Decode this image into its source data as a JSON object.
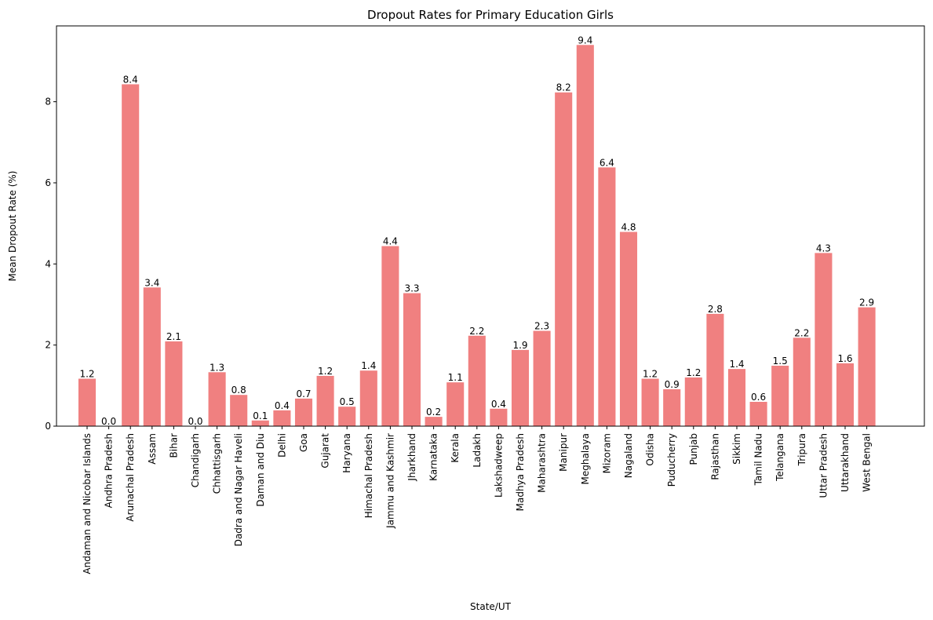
{
  "chart_data": {
    "type": "bar",
    "title": "Dropout Rates for Primary Education Girls",
    "xlabel": "State/UT",
    "ylabel": "Mean Dropout Rate (%)",
    "ylim": [
      0,
      9.87
    ],
    "yticks": [
      0,
      2,
      4,
      6,
      8
    ],
    "bar_color": "#f08080",
    "grid": false,
    "categories": [
      "Andaman and Nicobar Islands",
      "Andhra Pradesh",
      "Arunachal Pradesh",
      "Assam",
      "Bihar",
      "Chandigarh",
      "Chhattisgarh",
      "Dadra and Nagar Haveli",
      "Daman and Diu",
      "Delhi",
      "Goa",
      "Gujarat",
      "Haryana",
      "Himachal Pradesh",
      "Jammu and Kashmir",
      "Jharkhand",
      "Karnataka",
      "Kerala",
      "Ladakh",
      "Lakshadweep",
      "Madhya Pradesh",
      "Maharashtra",
      "Manipur",
      "Meghalaya",
      "Mizoram",
      "Nagaland",
      "Odisha",
      "Puducherry",
      "Punjab",
      "Rajasthan",
      "Sikkim",
      "Tamil Nadu",
      "Telangana",
      "Tripura",
      "Uttar Pradesh",
      "Uttarakhand",
      "West Bengal"
    ],
    "values": [
      1.17,
      0.0,
      8.43,
      3.42,
      2.09,
      0.0,
      1.33,
      0.77,
      0.14,
      0.39,
      0.68,
      1.24,
      0.48,
      1.37,
      4.44,
      3.28,
      0.23,
      1.08,
      2.23,
      0.43,
      1.88,
      2.35,
      8.23,
      9.4,
      6.38,
      4.79,
      1.17,
      0.91,
      1.2,
      2.77,
      1.41,
      0.6,
      1.49,
      2.18,
      4.27,
      1.55,
      2.93
    ],
    "labels": [
      "1.2",
      "0.0",
      "8.4",
      "3.4",
      "2.1",
      "0.0",
      "1.3",
      "0.8",
      "0.1",
      "0.4",
      "0.7",
      "1.2",
      "0.5",
      "1.4",
      "4.4",
      "3.3",
      "0.2",
      "1.1",
      "2.2",
      "0.4",
      "1.9",
      "2.3",
      "8.2",
      "9.4",
      "6.4",
      "4.8",
      "1.2",
      "0.9",
      "1.2",
      "2.8",
      "1.4",
      "0.6",
      "1.5",
      "2.2",
      "4.3",
      "1.6",
      "2.9"
    ]
  }
}
